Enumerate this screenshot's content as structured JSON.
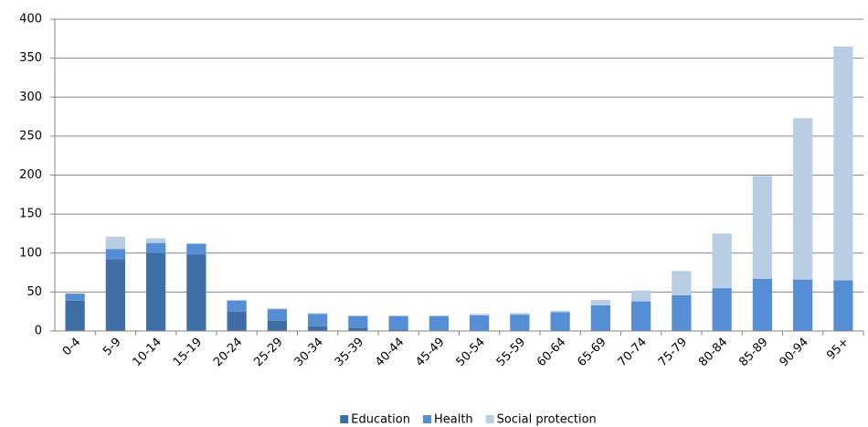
{
  "chart_data": {
    "type": "stacked_bar",
    "categories": [
      "0-4",
      "5-9",
      "10-14",
      "15-19",
      "20-24",
      "25-29",
      "30-34",
      "35-39",
      "40-44",
      "45-49",
      "50-54",
      "55-59",
      "60-64",
      "65-69",
      "70-74",
      "75-79",
      "80-84",
      "85-89",
      "90-94",
      "95+"
    ],
    "series": [
      {
        "name": "Education",
        "color": "#3f6ea7",
        "values": [
          39,
          92,
          100,
          98,
          25,
          13,
          6,
          4,
          2,
          1,
          0,
          0,
          0,
          0,
          0,
          0,
          0,
          0,
          0,
          0
        ]
      },
      {
        "name": "Health",
        "color": "#558ed5",
        "values": [
          9,
          13,
          13,
          14,
          14,
          15,
          16,
          15,
          17,
          18,
          20,
          21,
          24,
          33,
          38,
          46,
          55,
          67,
          66,
          65
        ]
      },
      {
        "name": "Social protection",
        "color": "#b9cde5",
        "values": [
          0,
          16,
          6,
          0,
          1,
          1,
          1,
          1,
          1,
          1,
          2,
          2,
          2,
          7,
          14,
          31,
          70,
          132,
          207,
          300
        ]
      }
    ],
    "ylim": [
      0,
      400
    ],
    "yticks": [
      0,
      50,
      100,
      150,
      200,
      250,
      300,
      350,
      400
    ],
    "grid": true,
    "legend": "bottom"
  }
}
